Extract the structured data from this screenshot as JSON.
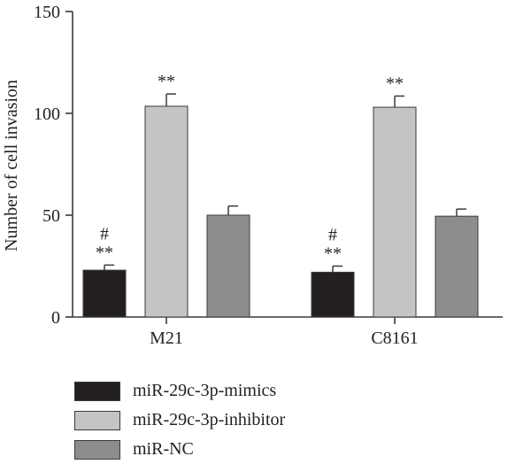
{
  "chart_data": {
    "type": "bar",
    "ylabel": "Number of cell invasion",
    "xlabel": "",
    "ylim": [
      0,
      150
    ],
    "yticks": [
      "0",
      "50",
      "100",
      "150"
    ],
    "categories": [
      "M21",
      "C8161"
    ],
    "series": [
      {
        "name": "miR-29c-3p-mimics",
        "color": "#231f20",
        "values": [
          23,
          22
        ],
        "errors": [
          2.5,
          3
        ],
        "annotations": [
          [
            "#",
            "**"
          ],
          [
            "#",
            "**"
          ]
        ]
      },
      {
        "name": "miR-29c-3p-inhibitor",
        "color": "#c4c4c6",
        "values": [
          103.5,
          103
        ],
        "errors": [
          6,
          5.5
        ],
        "annotations": [
          [
            "**"
          ],
          [
            "**"
          ]
        ]
      },
      {
        "name": "miR-NC",
        "color": "#8d8d8f",
        "values": [
          50,
          49.5
        ],
        "errors": [
          4.5,
          3.5
        ],
        "annotations": [
          [],
          []
        ]
      }
    ],
    "legend_position": "bottom-left"
  }
}
